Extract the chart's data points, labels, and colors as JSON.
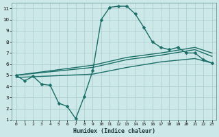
{
  "xlabel": "Humidex (Indice chaleur)",
  "bg_color": "#cde8e8",
  "grid_color": "#aacccc",
  "line_color": "#1a6e68",
  "xlim": [
    -0.5,
    23.5
  ],
  "ylim": [
    1,
    11.5
  ],
  "yticks": [
    1,
    2,
    3,
    4,
    5,
    6,
    7,
    8,
    9,
    10,
    11
  ],
  "xticks": [
    0,
    1,
    2,
    3,
    4,
    5,
    6,
    7,
    8,
    9,
    10,
    11,
    12,
    13,
    14,
    15,
    16,
    17,
    18,
    19,
    20,
    21,
    22,
    23
  ],
  "series": [
    {
      "x": [
        0,
        1,
        2,
        3,
        4,
        5,
        6,
        7,
        8,
        9,
        10,
        11,
        12,
        13,
        14,
        15,
        16,
        17,
        18,
        19,
        20,
        21,
        22,
        23
      ],
      "y": [
        5.0,
        4.5,
        4.9,
        4.2,
        4.1,
        2.5,
        2.2,
        1.1,
        3.1,
        5.4,
        10.0,
        11.1,
        11.2,
        11.2,
        10.5,
        9.3,
        8.0,
        7.5,
        7.3,
        7.5,
        7.0,
        7.0,
        6.4,
        6.1
      ],
      "marker": "D",
      "markersize": 2.5,
      "lw": 1.0,
      "has_markers": true
    },
    {
      "x": [
        0,
        9,
        13,
        17,
        21,
        23
      ],
      "y": [
        5.0,
        5.9,
        6.6,
        7.0,
        7.5,
        7.0
      ],
      "marker": "D",
      "markersize": 0,
      "lw": 1.0,
      "has_markers": false
    },
    {
      "x": [
        0,
        9,
        13,
        17,
        21,
        23
      ],
      "y": [
        5.0,
        5.7,
        6.4,
        6.8,
        7.3,
        6.7
      ],
      "marker": "D",
      "markersize": 0,
      "lw": 1.0,
      "has_markers": false
    },
    {
      "x": [
        0,
        9,
        13,
        17,
        21,
        23
      ],
      "y": [
        4.8,
        5.1,
        5.7,
        6.2,
        6.5,
        6.1
      ],
      "marker": "D",
      "markersize": 0,
      "lw": 1.0,
      "has_markers": false
    }
  ]
}
